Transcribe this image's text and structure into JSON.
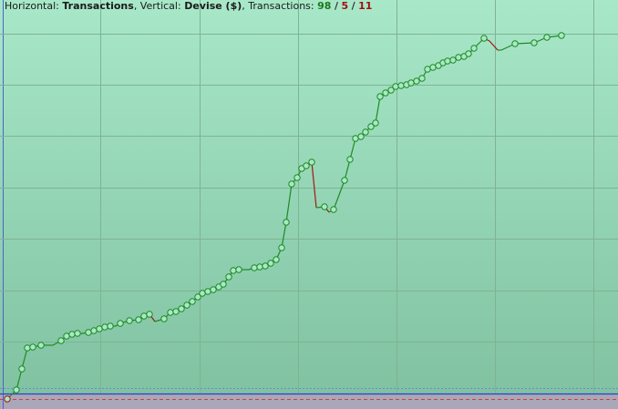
{
  "chart_data": {
    "type": "line",
    "header": {
      "horizontal_label": "Horizontal:",
      "horizontal_value": "Transactions",
      "vertical_label": ", Vertical:",
      "vertical_value": "Devise ($)",
      "transactions_label": ", Transactions:",
      "total": 98,
      "sep1": "/",
      "count2": 5,
      "sep2": "/",
      "count3": 11
    },
    "x": [
      8,
      18,
      24,
      30,
      36,
      45,
      58,
      67,
      73,
      79,
      85,
      91,
      97,
      103,
      109,
      115,
      121,
      127,
      132,
      142,
      152,
      158,
      164,
      170,
      180,
      187,
      193,
      199,
      205,
      211,
      217,
      222,
      228,
      234,
      240,
      245,
      251,
      256,
      262,
      267,
      273,
      279,
      285,
      291,
      297,
      303,
      309,
      314,
      320,
      326,
      331,
      336,
      342,
      347,
      356,
      361,
      366,
      378,
      384,
      390,
      396,
      401,
      407,
      412,
      417,
      423,
      429,
      434,
      440,
      446,
      451,
      457,
      463,
      469,
      475,
      481,
      486,
      491,
      497,
      503,
      509,
      514,
      520,
      531,
      537,
      546,
      550,
      565,
      586,
      600,
      616
    ],
    "values": [
      -6,
      4,
      27,
      50,
      51,
      53,
      53,
      58,
      63,
      65,
      66,
      66,
      67,
      69,
      71,
      73,
      74,
      74,
      77,
      80,
      81,
      85,
      87,
      79,
      82,
      89,
      90,
      93,
      97,
      101,
      106,
      110,
      112,
      114,
      117,
      120,
      128,
      135,
      136,
      136,
      136,
      138,
      139,
      140,
      143,
      147,
      160,
      188,
      230,
      237,
      247,
      250,
      254,
      204,
      205,
      199,
      202,
      234,
      257,
      280,
      282,
      287,
      293,
      297,
      326,
      330,
      333,
      337,
      338,
      339,
      341,
      343,
      346,
      356,
      358,
      360,
      363,
      365,
      366,
      369,
      370,
      373,
      379,
      390,
      387,
      377,
      377,
      384,
      385,
      391,
      393
    ],
    "color": "#1f8a24",
    "loss_color": "#a31515",
    "marker_fill": "#a9e8c6",
    "xlim": [
      0,
      678
    ],
    "ylim": [
      -17,
      432
    ],
    "xticks": [
      110,
      219,
      327,
      435,
      543,
      651
    ],
    "yticks": [
      57,
      113,
      170,
      226,
      283,
      339,
      395
    ],
    "grid": true
  }
}
